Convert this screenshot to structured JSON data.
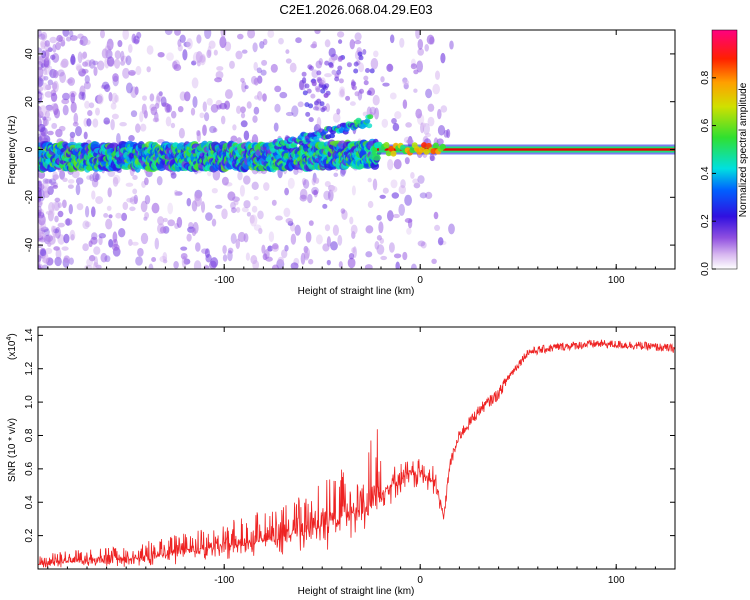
{
  "title": "C2E1.2026.068.04.29.E03",
  "colors": {
    "snr_line": "#ee2222",
    "spec_line": "#e80000"
  },
  "chart_data": [
    {
      "type": "heatmap",
      "name": "spectrogram",
      "xlabel": "Height of straight line (km)",
      "ylabel": "Frequency (Hz)",
      "xlim": [
        -195,
        130
      ],
      "ylim": [
        -50,
        50
      ],
      "xticks": [
        -100,
        0,
        100
      ],
      "xtick_labels": [
        "-100",
        "0",
        "100"
      ],
      "yticks": [
        -40,
        -20,
        0,
        20,
        40
      ],
      "ytick_labels": [
        "-40",
        "-20",
        "0",
        "20",
        "40"
      ],
      "colorbar": {
        "label": "Normalized spectral amplitude",
        "range": [
          0,
          1
        ],
        "ticks": [
          0.0,
          0.2,
          0.4,
          0.6,
          0.8
        ],
        "tick_labels": [
          "0.0",
          "0.2",
          "0.4",
          "0.6",
          "0.8"
        ]
      },
      "features": [
        {
          "label": "noisy band",
          "x_range": [
            -195,
            -25
          ],
          "center_y": -3,
          "width_hz": 12
        },
        {
          "label": "rising branch",
          "x_range": [
            -80,
            -25
          ],
          "y_start": 0,
          "y_end": 12
        },
        {
          "label": "steady tone",
          "x_range": [
            -22,
            130
          ],
          "y": 0
        }
      ]
    },
    {
      "type": "line",
      "name": "snr",
      "xlabel": "Height of straight line (km)",
      "ylabel": "SNR (10 * v/v)",
      "yscale_label": "(x10",
      "yscale_exponent": "4",
      "xlim": [
        -195,
        130
      ],
      "ylim": [
        0,
        1.45
      ],
      "xticks": [
        -100,
        0,
        100
      ],
      "xtick_labels": [
        "-100",
        "0",
        "100"
      ],
      "yticks": [
        0.2,
        0.4,
        0.6,
        0.8,
        1.0,
        1.2,
        1.4
      ],
      "ytick_labels": [
        "0.2",
        "0.4",
        "0.6",
        "0.8",
        "1.0",
        "1.2",
        "1.4"
      ],
      "series": [
        {
          "name": "SNR",
          "x": [
            -195,
            -180,
            -160,
            -140,
            -120,
            -100,
            -80,
            -60,
            -45,
            -30,
            -20,
            -10,
            0,
            8,
            12,
            15,
            20,
            30,
            40,
            45,
            55,
            70,
            90,
            110,
            130
          ],
          "y": [
            0.03,
            0.04,
            0.05,
            0.07,
            0.1,
            0.13,
            0.17,
            0.22,
            0.28,
            0.35,
            0.45,
            0.55,
            0.58,
            0.5,
            0.3,
            0.62,
            0.8,
            0.95,
            1.05,
            1.15,
            1.3,
            1.33,
            1.35,
            1.34,
            1.32
          ]
        }
      ]
    }
  ]
}
